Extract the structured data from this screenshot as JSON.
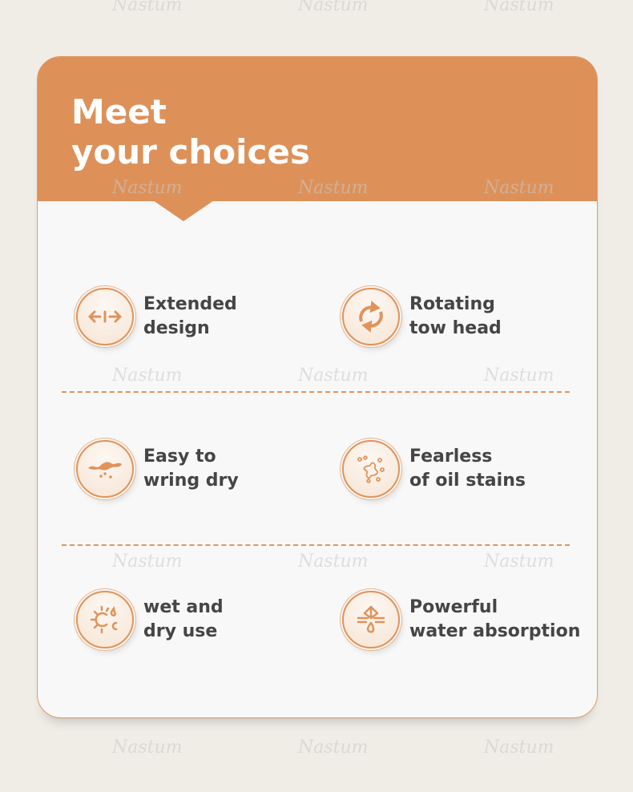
{
  "title_lines": [
    "Meet",
    "your choices"
  ],
  "features": [
    {
      "icon": "extend-arrows-icon",
      "lines": [
        "Extended",
        "design"
      ]
    },
    {
      "icon": "rotate-icon",
      "lines": [
        "Rotating",
        "tow head"
      ]
    },
    {
      "icon": "wring-icon",
      "lines": [
        "Easy to",
        "wring dry"
      ]
    },
    {
      "icon": "oil-stain-icon",
      "lines": [
        "Fearless",
        "of oil stains"
      ]
    },
    {
      "icon": "sun-water-icon",
      "lines": [
        "wet and",
        "dry use"
      ]
    },
    {
      "icon": "absorption-icon",
      "lines": [
        "Powerful",
        "water absorption"
      ]
    }
  ],
  "watermark": "Nastum",
  "colors": {
    "accent": "#dd9159",
    "text": "#454545",
    "background": "#f0ede6"
  }
}
